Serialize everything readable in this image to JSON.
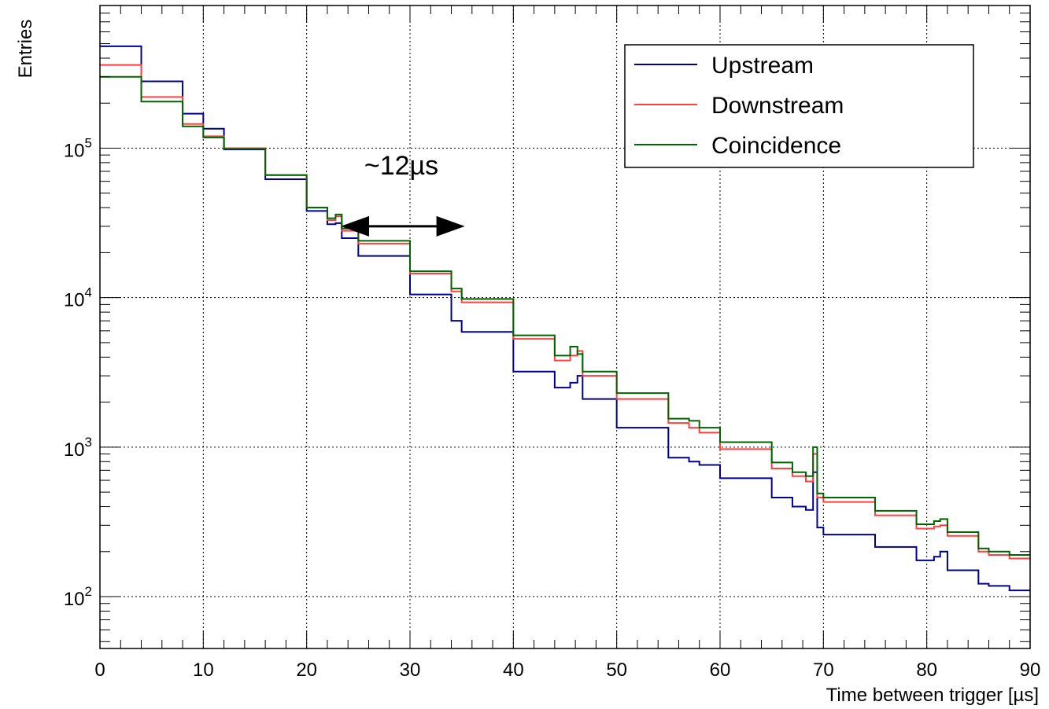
{
  "chart_data": {
    "type": "line",
    "step": true,
    "xlabel": "Time between trigger [µs]",
    "ylabel": "Entries",
    "xlim": [
      0,
      90
    ],
    "ylim": [
      45,
      900000
    ],
    "yscale": "log",
    "grid": true,
    "legend_position": "top-right",
    "x_ticks": [
      0,
      10,
      20,
      30,
      40,
      50,
      60,
      70,
      80,
      90
    ],
    "x_tick_labels": [
      "0",
      "10",
      "20",
      "30",
      "40",
      "50",
      "60",
      "70",
      "80",
      "90"
    ],
    "y_ticks": [
      100,
      1000,
      10000,
      100000
    ],
    "y_tick_bases": [
      "10",
      "10",
      "10",
      "10"
    ],
    "y_tick_exponents": [
      "2",
      "3",
      "4",
      "5"
    ],
    "annotation": {
      "text": "~12µs",
      "x_start": 23.3,
      "x_end": 35.3,
      "y": 30000
    },
    "x": [
      0,
      4,
      8,
      10,
      12,
      16,
      20,
      22,
      22.8,
      23.4,
      25,
      30,
      34,
      35,
      40,
      44,
      45.5,
      46.2,
      46.7,
      50,
      55,
      57,
      58,
      60,
      65,
      67,
      68.3,
      69.0,
      69.4,
      70,
      75,
      79,
      80.7,
      81.3,
      82,
      85,
      86,
      88,
      90
    ],
    "series": [
      {
        "name": "Upstream",
        "color": "#00008b",
        "values": [
          480000,
          280000,
          170000,
          135000,
          98000,
          62000,
          38000,
          31000,
          31500,
          25000,
          19000,
          10500,
          7000,
          5900,
          3200,
          2500,
          2700,
          3000,
          2100,
          1350,
          850,
          800,
          760,
          620,
          460,
          400,
          380,
          680,
          290,
          260,
          215,
          175,
          185,
          200,
          150,
          122,
          118,
          110,
          112
        ]
      },
      {
        "name": "Downstream",
        "color": "#ff4040",
        "values": [
          360000,
          220000,
          145000,
          120000,
          100000,
          66000,
          40000,
          33000,
          35000,
          28000,
          23000,
          14500,
          11000,
          9300,
          5300,
          3800,
          4100,
          4400,
          3000,
          2100,
          1450,
          1350,
          1250,
          970,
          720,
          640,
          590,
          900,
          460,
          430,
          350,
          285,
          295,
          300,
          255,
          200,
          190,
          180,
          165
        ]
      },
      {
        "name": "Coincidence",
        "color": "#006400",
        "values": [
          300000,
          205000,
          140000,
          118000,
          99000,
          66000,
          40000,
          34000,
          36000,
          29000,
          24000,
          15000,
          11500,
          9800,
          5600,
          4100,
          4700,
          4200,
          3200,
          2300,
          1550,
          1500,
          1350,
          1080,
          790,
          680,
          640,
          1000,
          490,
          460,
          375,
          305,
          320,
          330,
          270,
          210,
          200,
          190,
          175
        ]
      }
    ]
  }
}
